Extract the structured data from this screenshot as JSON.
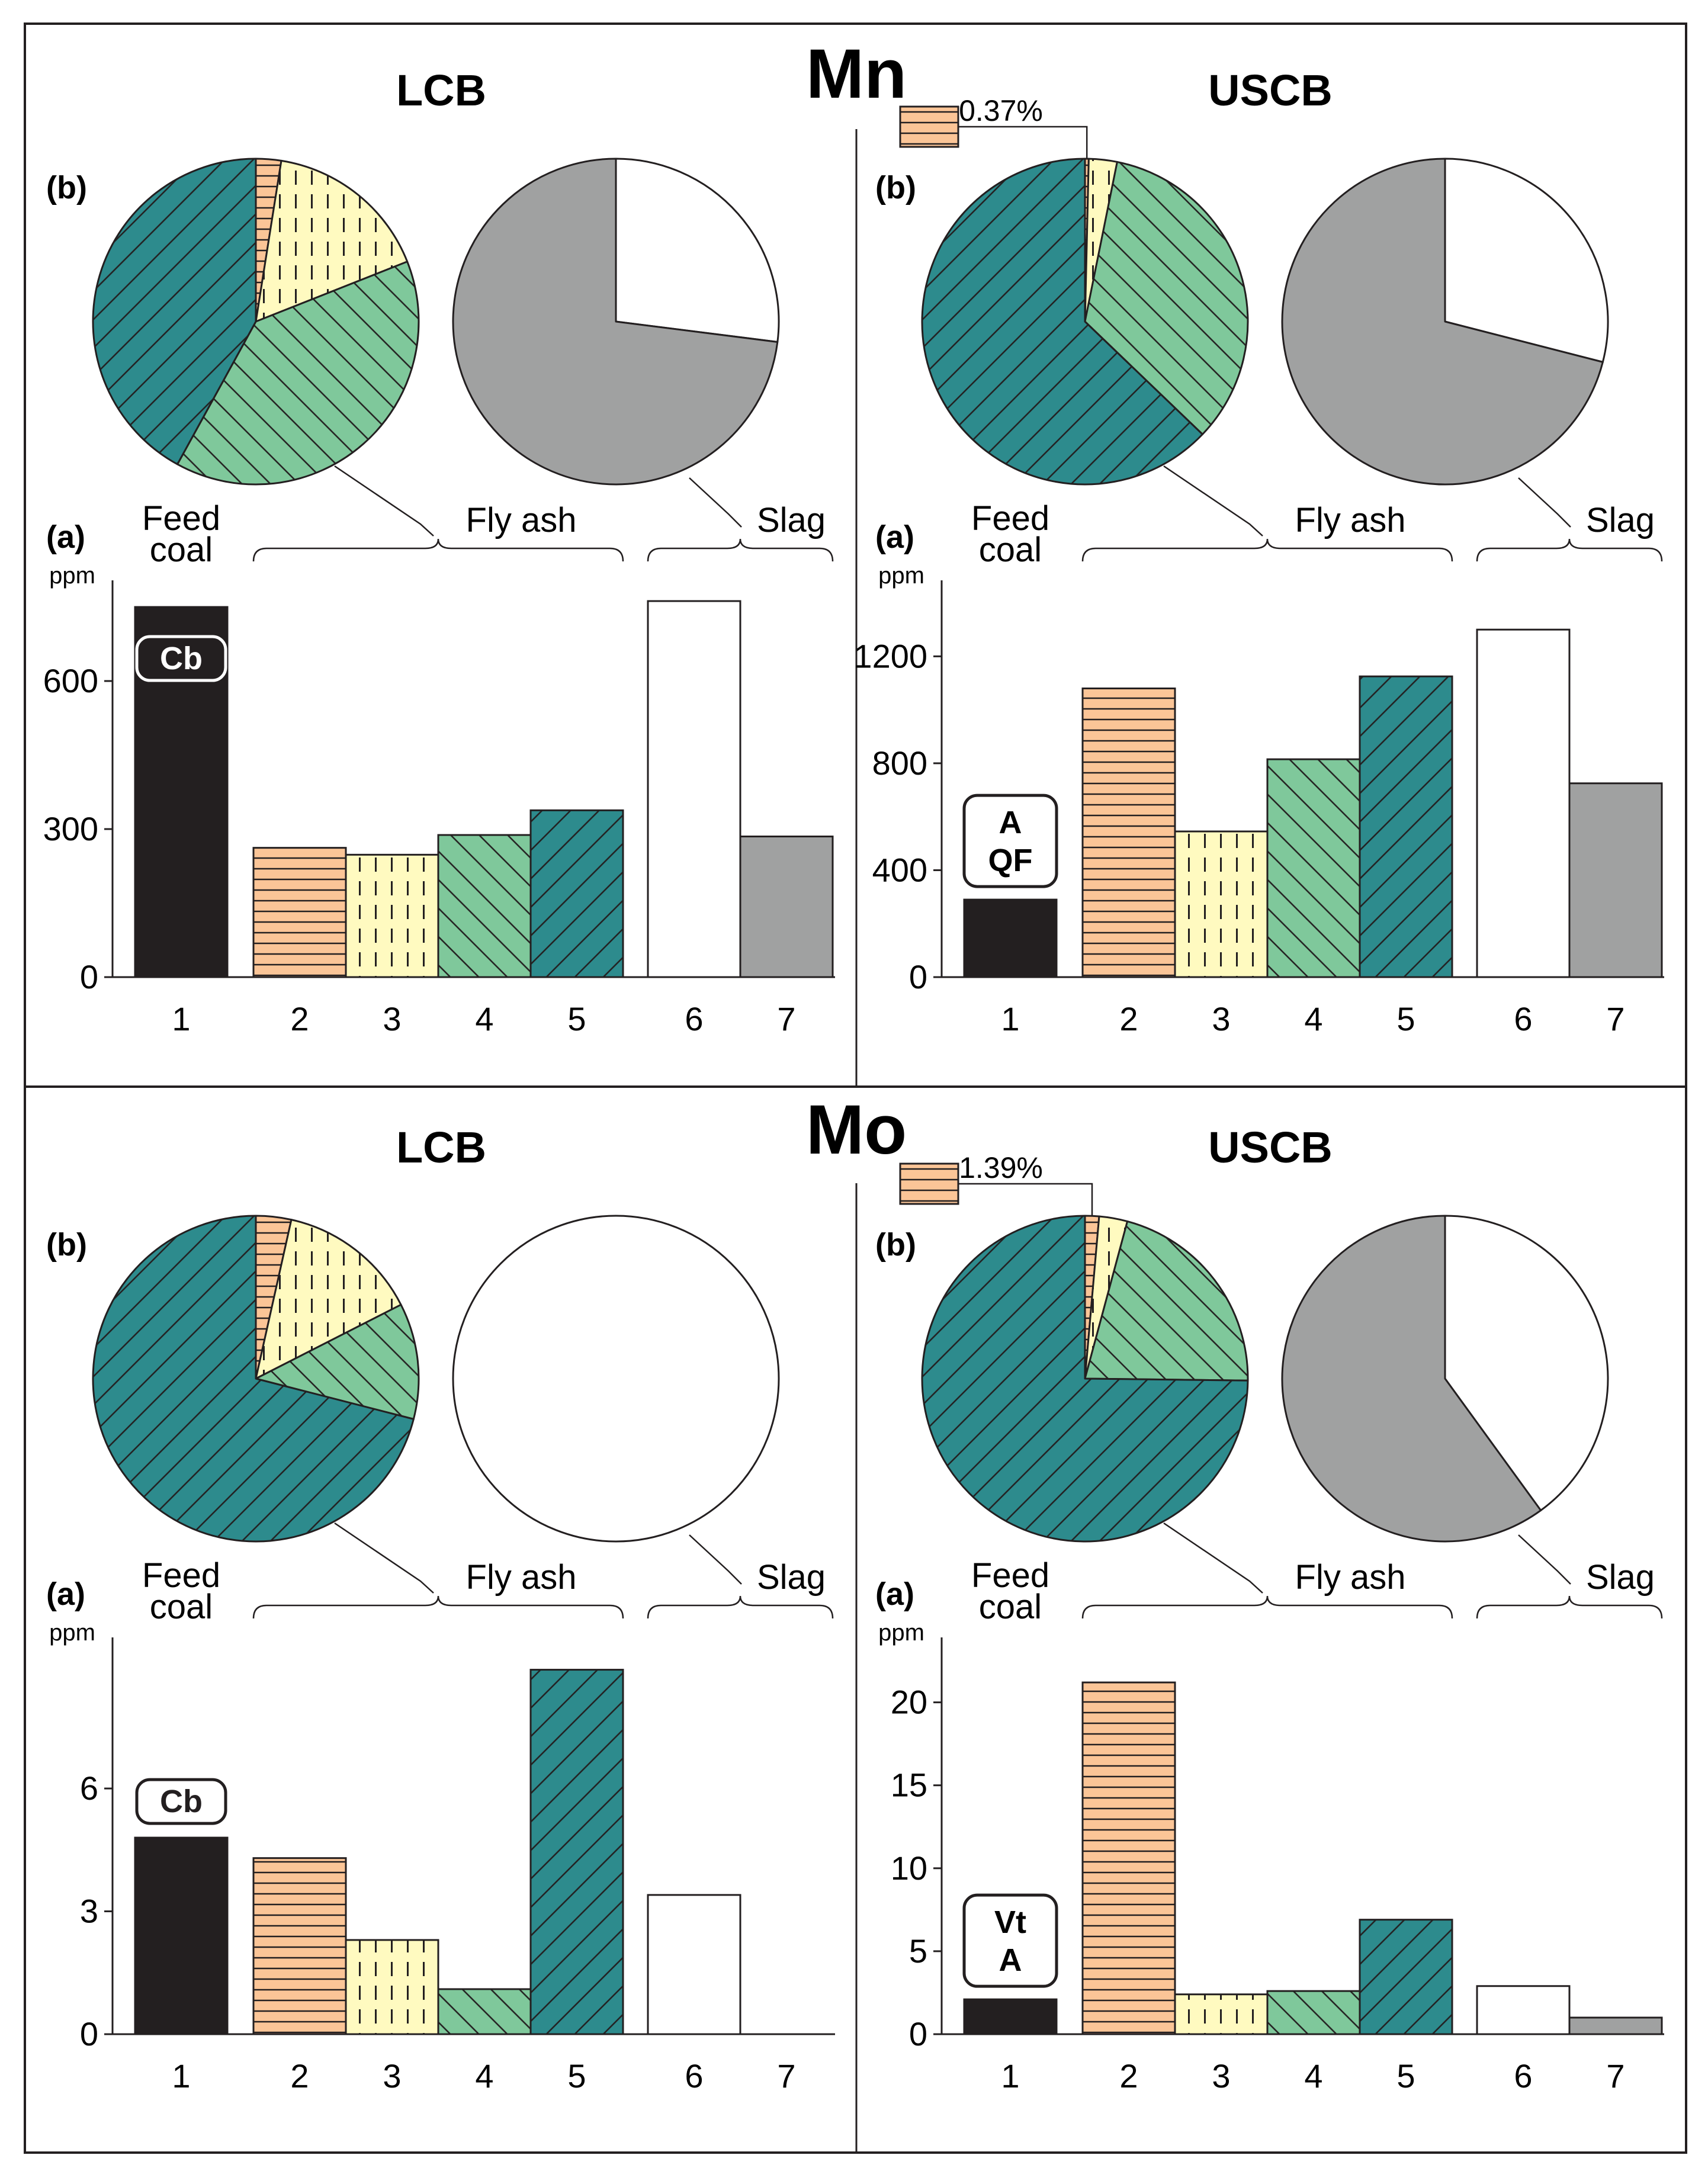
{
  "colors": {
    "feed_coal": "#231f20",
    "fly_ash_2": "#fbc597",
    "fly_ash_3": "#fffac0",
    "fly_ash_4": "#7fc89b",
    "fly_ash_5": "#2d8b8d",
    "slag_6": "#ffffff",
    "slag_7": "#a0a1a1",
    "stroke": "#231f20"
  },
  "labels": {
    "pie_panel": "(b)",
    "bar_panel": "(a)",
    "feed_coal_line1": "Feed",
    "feed_coal_line2": "coal",
    "fly_ash": "Fly ash",
    "slag": "Slag",
    "unit": "ppm"
  },
  "chart_data": [
    {
      "type": "bar",
      "element": "Mn",
      "basin": "LCB",
      "categories": [
        "1",
        "2",
        "3",
        "4",
        "5",
        "6",
        "7"
      ],
      "values": [
        750,
        262,
        248,
        288,
        338,
        762,
        285
      ],
      "ylim": [
        0,
        780
      ],
      "yticks": [
        0,
        300,
        600
      ],
      "badge": [
        "Cb"
      ],
      "groups": {
        "feed_coal": [
          "1"
        ],
        "fly_ash": [
          "2",
          "3",
          "4",
          "5"
        ],
        "slag": [
          "6",
          "7"
        ]
      },
      "pies": {
        "fly_ash": {
          "slices": [
            {
              "category": "2",
              "share": 2.5
            },
            {
              "category": "3",
              "share": 16.5
            },
            {
              "category": "4",
              "share": 39
            },
            {
              "category": "5",
              "share": 42
            }
          ]
        },
        "slag": {
          "slices": [
            {
              "category": "6",
              "share": 27
            },
            {
              "category": "7",
              "share": 73
            }
          ]
        }
      }
    },
    {
      "type": "bar",
      "element": "Mn",
      "basin": "USCB",
      "categories": [
        "1",
        "2",
        "3",
        "4",
        "5",
        "6",
        "7"
      ],
      "values": [
        290,
        1080,
        545,
        815,
        1125,
        1300,
        725
      ],
      "ylim": [
        0,
        1440
      ],
      "yticks": [
        0,
        400,
        800,
        1200
      ],
      "badge": [
        "A",
        "QF"
      ],
      "groups": {
        "feed_coal": [
          "1"
        ],
        "fly_ash": [
          "2",
          "3",
          "4",
          "5"
        ],
        "slag": [
          "6",
          "7"
        ]
      },
      "pie_callout": "0.37%",
      "pies": {
        "fly_ash": {
          "slices": [
            {
              "category": "2",
              "share": 0.37
            },
            {
              "category": "3",
              "share": 2.8
            },
            {
              "category": "4",
              "share": 34
            },
            {
              "category": "5",
              "share": 62.83
            }
          ]
        },
        "slag": {
          "slices": [
            {
              "category": "6",
              "share": 29
            },
            {
              "category": "7",
              "share": 71
            }
          ]
        }
      }
    },
    {
      "type": "bar",
      "element": "Mo",
      "basin": "LCB",
      "categories": [
        "1",
        "2",
        "3",
        "4",
        "5",
        "6",
        "7"
      ],
      "values": [
        4.8,
        4.3,
        2.3,
        1.1,
        8.9,
        3.4,
        0
      ],
      "ylim": [
        0,
        9.4
      ],
      "yticks": [
        0,
        3,
        6
      ],
      "badge": [
        "Cb"
      ],
      "groups": {
        "feed_coal": [
          "1"
        ],
        "fly_ash": [
          "2",
          "3",
          "4",
          "5"
        ],
        "slag": [
          "6",
          "7"
        ]
      },
      "pies": {
        "fly_ash": {
          "slices": [
            {
              "category": "2",
              "share": 3.5
            },
            {
              "category": "3",
              "share": 14
            },
            {
              "category": "4",
              "share": 11.5
            },
            {
              "category": "5",
              "share": 71
            }
          ]
        },
        "slag": {
          "slices": [
            {
              "category": "6",
              "share": 100
            }
          ]
        }
      }
    },
    {
      "type": "bar",
      "element": "Mo",
      "basin": "USCB",
      "categories": [
        "1",
        "2",
        "3",
        "4",
        "5",
        "6",
        "7"
      ],
      "values": [
        2.1,
        21.2,
        2.4,
        2.6,
        6.9,
        2.9,
        1.0
      ],
      "ylim": [
        0,
        23.2
      ],
      "yticks": [
        0,
        5,
        10,
        15,
        20
      ],
      "badge": [
        "Vt",
        "A"
      ],
      "groups": {
        "feed_coal": [
          "1"
        ],
        "fly_ash": [
          "2",
          "3",
          "4",
          "5"
        ],
        "slag": [
          "6",
          "7"
        ]
      },
      "pie_callout": "1.39%",
      "pies": {
        "fly_ash": {
          "slices": [
            {
              "category": "2",
              "share": 1.39
            },
            {
              "category": "3",
              "share": 2.8
            },
            {
              "category": "4",
              "share": 21
            },
            {
              "category": "5",
              "share": 74.81
            }
          ]
        },
        "slag": {
          "slices": [
            {
              "category": "6",
              "share": 40
            },
            {
              "category": "7",
              "share": 60
            }
          ]
        }
      }
    }
  ]
}
